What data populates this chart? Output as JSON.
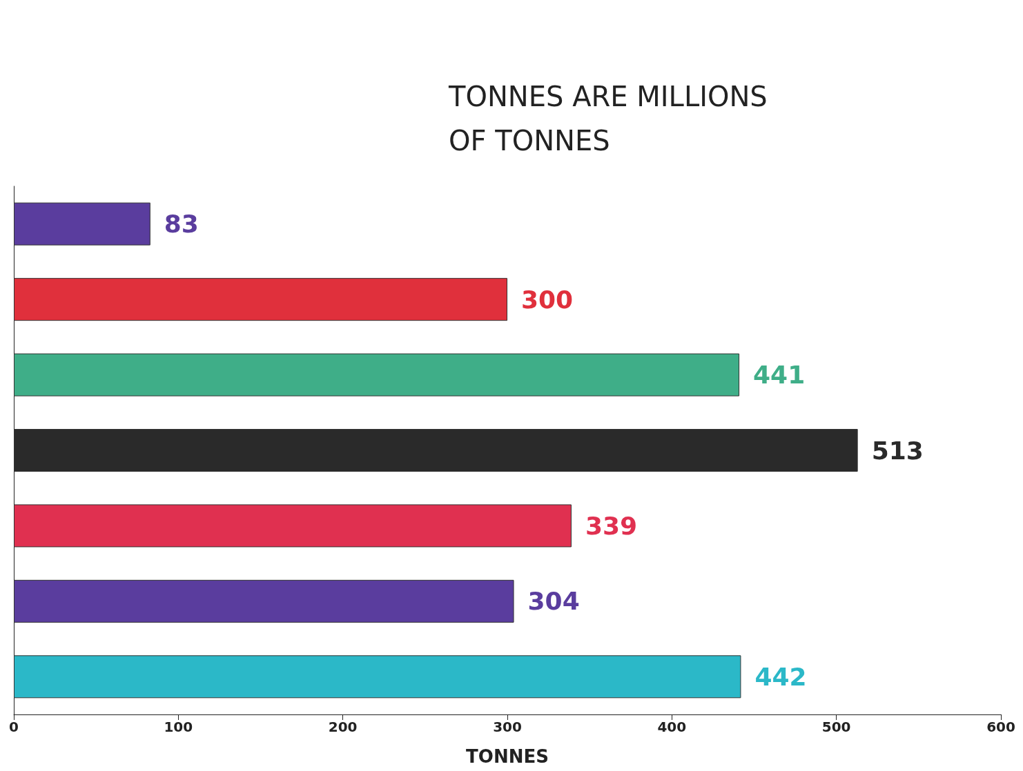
{
  "chart_data": {
    "type": "bar",
    "orientation": "horizontal",
    "categories": [
      null,
      null,
      null,
      null,
      null,
      null,
      null
    ],
    "values": [
      83,
      300,
      441,
      513,
      339,
      304,
      442
    ],
    "colors": [
      "#5a3d9e",
      "#e0303c",
      "#3fae88",
      "#2a2a2a",
      "#e03050",
      "#5a3d9e",
      "#2bb8c8"
    ],
    "xlim": [
      0,
      600
    ],
    "xticks": [
      0,
      100,
      200,
      300,
      400,
      500,
      600
    ],
    "xlabel": "TONNES",
    "annotations": [
      "TONNES ARE MILLIONS\nOF TONNES"
    ],
    "data_labels": true
  }
}
